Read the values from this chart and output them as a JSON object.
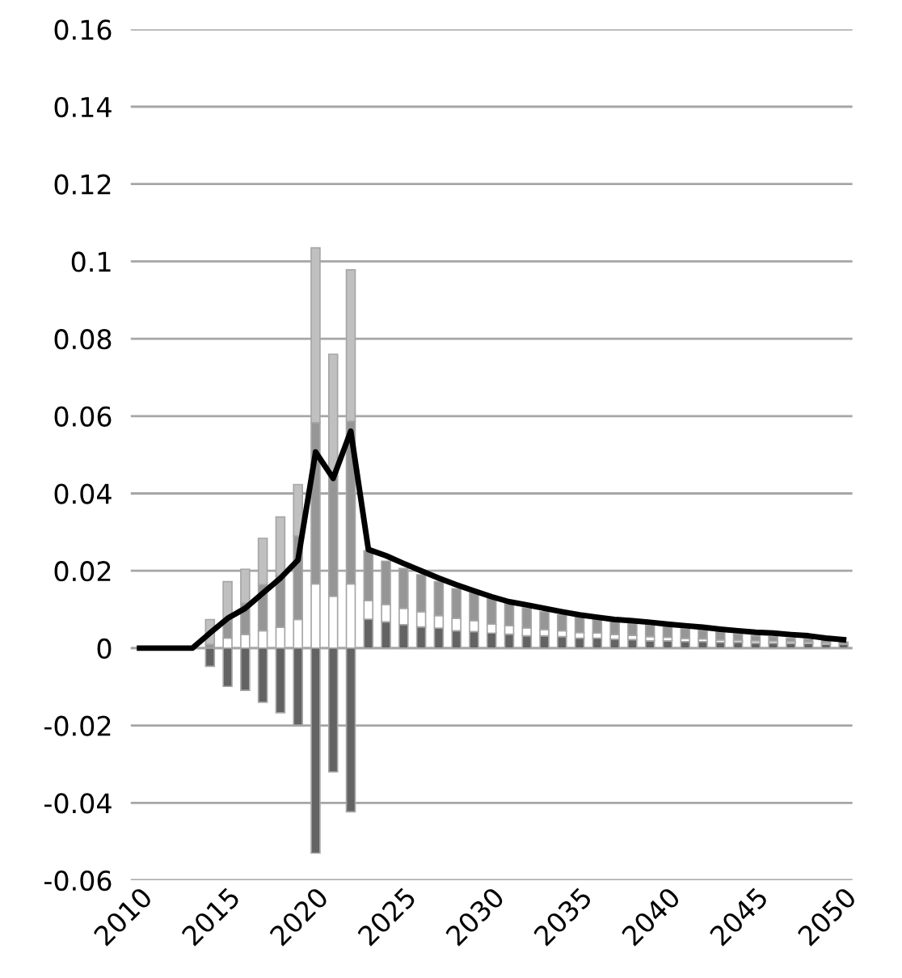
{
  "chart_data": {
    "type": "bar",
    "stacked": true,
    "categories": [
      "2010",
      null,
      null,
      null,
      null,
      "2015",
      null,
      null,
      null,
      null,
      "2020",
      null,
      null,
      null,
      null,
      "2025",
      null,
      null,
      null,
      null,
      "2030",
      null,
      null,
      null,
      null,
      "2035",
      null,
      null,
      null,
      null,
      "2040",
      null,
      null,
      null,
      null,
      "2045",
      null,
      null,
      null,
      null,
      "2050"
    ],
    "series": [
      {
        "color": "#636363",
        "values": [
          null,
          null,
          null,
          null,
          null,
          null,
          null,
          null,
          null,
          null,
          null,
          null,
          null,
          0.0075,
          0.0068,
          0.0061,
          0.0055,
          0.0052,
          0.0045,
          0.0043,
          0.0039,
          0.0036,
          0.0032,
          0.0032,
          0.003,
          0.0026,
          0.0026,
          0.0023,
          0.0022,
          0.0019,
          0.0019,
          0.0017,
          0.0017,
          0.0015,
          0.0015,
          0.0013,
          0.0013,
          0.0012,
          0.0012,
          0.001,
          0.001
        ]
      },
      {
        "color": "#ffffff",
        "values": [
          null,
          null,
          null,
          null,
          null,
          0.0026,
          0.0035,
          0.0045,
          0.0054,
          0.0074,
          0.0166,
          0.0134,
          0.0166,
          0.0048,
          0.0045,
          0.0042,
          0.0039,
          0.0032,
          0.0032,
          0.0028,
          0.0023,
          0.0022,
          0.002,
          0.0016,
          0.0015,
          0.0014,
          0.0013,
          0.0012,
          0.0011,
          0.0011,
          0.0009,
          0.0008,
          0.0007,
          0.0006,
          0.0005,
          0.0006,
          0.0005,
          0.0005,
          0.0004,
          0.0004,
          null
        ]
      },
      {
        "color": "#969696",
        "values": [
          null,
          null,
          null,
          null,
          0.001,
          0.0045,
          0.0081,
          0.0119,
          0.0133,
          0.0216,
          0.0417,
          0.031,
          0.0421,
          0.0129,
          0.0112,
          0.0103,
          0.0096,
          0.0088,
          0.0077,
          0.0071,
          0.0067,
          0.0058,
          0.0052,
          0.0046,
          0.0041,
          0.0039,
          0.0035,
          0.0034,
          0.003,
          0.003,
          0.0027,
          0.0025,
          0.0022,
          0.0021,
          0.0017,
          0.0013,
          0.0012,
          0.0009,
          0.0008,
          0.0008,
          0.0006
        ]
      },
      {
        "color": "#c0c0c0",
        "values": [
          null,
          null,
          null,
          null,
          0.0064,
          0.0101,
          0.0088,
          0.012,
          0.0152,
          0.0133,
          0.0452,
          0.0316,
          0.0391,
          null,
          null,
          null,
          null,
          null,
          null,
          null,
          null,
          null,
          null,
          null,
          null,
          null,
          null,
          null,
          null,
          null,
          null,
          null,
          null,
          null,
          null,
          null,
          null,
          null,
          null,
          null,
          null
        ]
      },
      {
        "color": "#636363",
        "values": [
          null,
          null,
          null,
          null,
          -0.0047,
          -0.0099,
          -0.0109,
          -0.014,
          -0.0167,
          -0.0199,
          -0.053,
          -0.032,
          -0.0423,
          null,
          null,
          null,
          null,
          null,
          null,
          null,
          null,
          null,
          null,
          null,
          null,
          null,
          null,
          null,
          null,
          null,
          null,
          null,
          null,
          null,
          null,
          null,
          null,
          null,
          null,
          null,
          null
        ]
      },
      {
        "type": "line",
        "color": "#000000",
        "values": [
          0,
          0,
          0,
          0,
          0.0039,
          0.0077,
          0.0103,
          0.0142,
          0.0181,
          0.0228,
          0.0507,
          0.0439,
          0.0561,
          0.0255,
          0.0239,
          0.0219,
          0.02,
          0.0181,
          0.0164,
          0.0148,
          0.0133,
          0.012,
          0.0112,
          0.0103,
          0.0094,
          0.0086,
          0.008,
          0.0074,
          0.0071,
          0.0067,
          0.0062,
          0.0058,
          0.0054,
          0.0049,
          0.0045,
          0.0041,
          0.0039,
          0.0035,
          0.0032,
          0.0026,
          0.0022
        ]
      }
    ],
    "ylim": [
      -0.06,
      0.16
    ],
    "yticks": [
      -0.06,
      -0.04,
      -0.02,
      0,
      0.02,
      0.04,
      0.06,
      0.08,
      0.1,
      0.12,
      0.14,
      0.16
    ],
    "grid": "y",
    "legend": false
  }
}
